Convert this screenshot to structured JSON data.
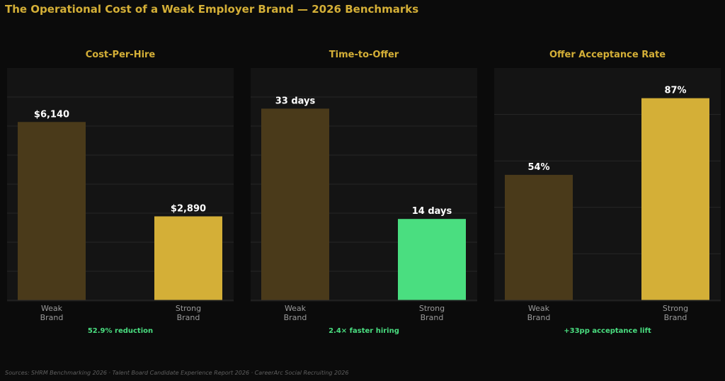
{
  "title": "The Operational Cost of a Weak Employer Brand — 2026 Benchmarks",
  "sources": "Sources: SHRM Benchmarking 2026 · Talent Board Candidate Experience Report 2026 · CareerArc Social Recruiting 2026",
  "colors": {
    "background": "#0b0b0b",
    "plot_background": "#141414",
    "grid": "#262626",
    "title": "#d4af37",
    "weak": "#4a3a1a",
    "strong_gold": "#d4af37",
    "strong_green": "#4ade80",
    "tick_label": "#9a9a9a",
    "data_label": "#ffffff",
    "note": "#4ade80"
  },
  "chart_data": [
    {
      "type": "bar",
      "title": "Cost-Per-Hire",
      "categories": [
        "Weak\nBrand",
        "Strong\nBrand"
      ],
      "values": [
        6140,
        2890
      ],
      "value_labels": [
        "$6,140",
        "$2,890"
      ],
      "bar_colors": [
        "#4a3a1a",
        "#d4af37"
      ],
      "ylim": [
        0,
        8000
      ],
      "yticks": [
        1000,
        2000,
        3000,
        4000,
        5000,
        6000,
        7000
      ],
      "grid": true,
      "annotation": "52.9% reduction"
    },
    {
      "type": "bar",
      "title": "Time-to-Offer",
      "categories": [
        "Weak\nBrand",
        "Strong\nBrand"
      ],
      "values": [
        33,
        14
      ],
      "value_labels": [
        "33 days",
        "14 days"
      ],
      "bar_colors": [
        "#4a3a1a",
        "#4ade80"
      ],
      "ylim": [
        0,
        40
      ],
      "yticks": [
        5,
        10,
        15,
        20,
        25,
        30,
        35
      ],
      "grid": true,
      "annotation": "2.4× faster hiring"
    },
    {
      "type": "bar",
      "title": "Offer Acceptance Rate",
      "categories": [
        "Weak\nBrand",
        "Strong\nBrand"
      ],
      "values": [
        54,
        87
      ],
      "value_labels": [
        "54%",
        "87%"
      ],
      "bar_colors": [
        "#4a3a1a",
        "#d4af37"
      ],
      "ylim": [
        0,
        100
      ],
      "yticks": [
        20,
        40,
        60,
        80
      ],
      "grid": true,
      "annotation": "+33pp acceptance lift"
    }
  ]
}
